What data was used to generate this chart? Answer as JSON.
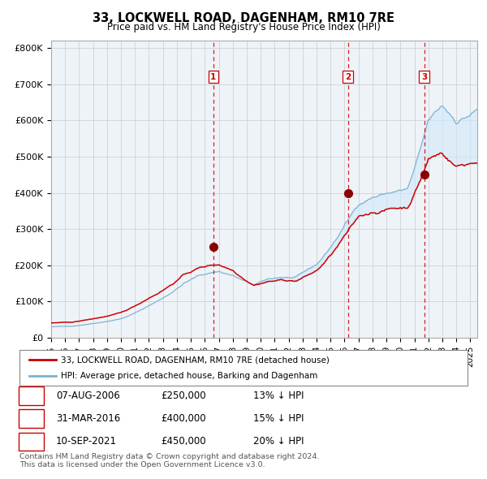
{
  "title": "33, LOCKWELL ROAD, DAGENHAM, RM10 7RE",
  "subtitle": "Price paid vs. HM Land Registry's House Price Index (HPI)",
  "hpi_color": "#a8c8e8",
  "hpi_line_color": "#7fb3d3",
  "price_color": "#cc0000",
  "fill_color": "#d0e8f8",
  "sale_years": [
    2006.604,
    2016.247,
    2021.703
  ],
  "sale_prices": [
    250000,
    400000,
    450000
  ],
  "sale_labels": [
    "1",
    "2",
    "3"
  ],
  "vline_color": "#cc0000",
  "marker_color": "#8b0000",
  "ylabel_ticks": [
    "£0",
    "£100K",
    "£200K",
    "£300K",
    "£400K",
    "£500K",
    "£600K",
    "£700K",
    "£800K"
  ],
  "ytick_vals": [
    0,
    100000,
    200000,
    300000,
    400000,
    500000,
    600000,
    700000,
    800000
  ],
  "ylim": [
    0,
    820000
  ],
  "xlim_start": 1995.0,
  "xlim_end": 2025.5,
  "legend_line1": "33, LOCKWELL ROAD, DAGENHAM, RM10 7RE (detached house)",
  "legend_line2": "HPI: Average price, detached house, Barking and Dagenham",
  "table_rows": [
    [
      "1",
      "07-AUG-2006",
      "£250,000",
      "13% ↓ HPI"
    ],
    [
      "2",
      "31-MAR-2016",
      "£400,000",
      "15% ↓ HPI"
    ],
    [
      "3",
      "10-SEP-2021",
      "£450,000",
      "20% ↓ HPI"
    ]
  ],
  "footnote": "Contains HM Land Registry data © Crown copyright and database right 2024.\nThis data is licensed under the Open Government Licence v3.0.",
  "grid_color": "#cccccc",
  "axis_bg": "#eef3f8"
}
